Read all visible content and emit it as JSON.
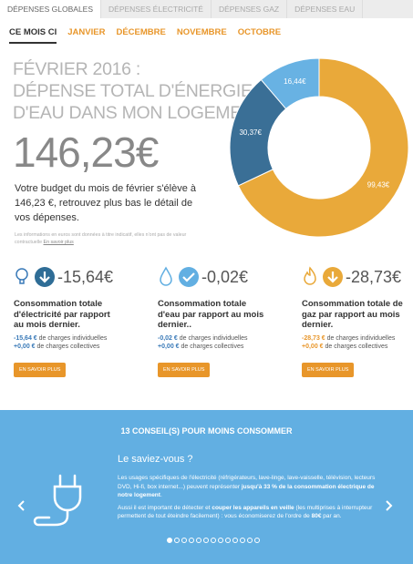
{
  "tabs": [
    "DÉPENSES GLOBALES",
    "DÉPENSES ÉLECTRICITÉ",
    "DÉPENSES GAZ",
    "DÉPENSES EAU"
  ],
  "periods": [
    "CE MOIS CI",
    "JANVIER",
    "DÉCEMBRE",
    "NOVEMBRE",
    "OCTOBRE"
  ],
  "summary": {
    "heading": [
      "FÉVRIER 2016 :",
      "DÉPENSE TOTAL D'ÉNERGIE &",
      "D'EAU DANS MON LOGEMENT."
    ],
    "total": "146,23€",
    "text": "Votre budget du mois de février s'élève à 146,23 €, retrouvez plus bas le détail de vos dépenses.",
    "note": "Les informations en euros sont données à titre indicatif, elles n'ont pas de valeur contractuelle",
    "note_link": "En savoir plus"
  },
  "chart_data": {
    "type": "donut",
    "values": [
      99.43,
      30.37,
      16.44
    ],
    "value_labels": [
      "99,43€",
      "30,37€",
      "16,44€"
    ],
    "colors": [
      "#e9a93a",
      "#3a6f96",
      "#68b2e3"
    ]
  },
  "cards": [
    {
      "amount": "-15,64€",
      "title": "Consommation totale d'électricité par rapport au mois dernier.",
      "individual": "-15,64 €",
      "individual_text": "de charges individuelles",
      "collective": "+0,00 €",
      "collective_text": "de charges collectives",
      "button": "EN SAVOIR PLUS"
    },
    {
      "amount": "-0,02€",
      "title": "Consommation totale d'eau par rapport au mois dernier..",
      "individual": "-0,02 €",
      "individual_text": "de charges individuelles",
      "collective": "+0,00 €",
      "collective_text": "de charges collectives",
      "button": "EN SAVOIR PLUS"
    },
    {
      "amount": "-28,73€",
      "title": "Consommation totale de gaz par rapport au mois dernier.",
      "individual": "-28,73 €",
      "individual_text": "de charges individuelles",
      "collective": "+0,00 €",
      "collective_text": "de charges collectives",
      "button": "EN SAVOIR PLUS"
    }
  ],
  "tips": {
    "title": "13 CONSEIL(S) POUR MOINS CONSOMMER",
    "subtitle": "Le saviez-vous ?",
    "paragraphs": [
      [
        {
          "text": "Les usages spécifiques de l'électricité (réfrigérateurs, lave-linge, lave-vaisselle, télévision, lecteurs DVD, Hi-fi, box internet...) peuvent représenter ",
          "bold": false
        },
        {
          "text": "jusqu'à 33 % de la consommation électrique de notre logement",
          "bold": true
        },
        {
          "text": ".",
          "bold": false
        }
      ],
      [
        {
          "text": "Aussi il est important de détecter et ",
          "bold": false
        },
        {
          "text": "couper les appareils en veille",
          "bold": true
        },
        {
          "text": " (les multiprises à interrupteur permettent de tout éteindre facilement) : vous économiserez de l'ordre de ",
          "bold": false
        },
        {
          "text": "80€",
          "bold": true
        },
        {
          "text": " par an.",
          "bold": false
        }
      ]
    ]
  }
}
